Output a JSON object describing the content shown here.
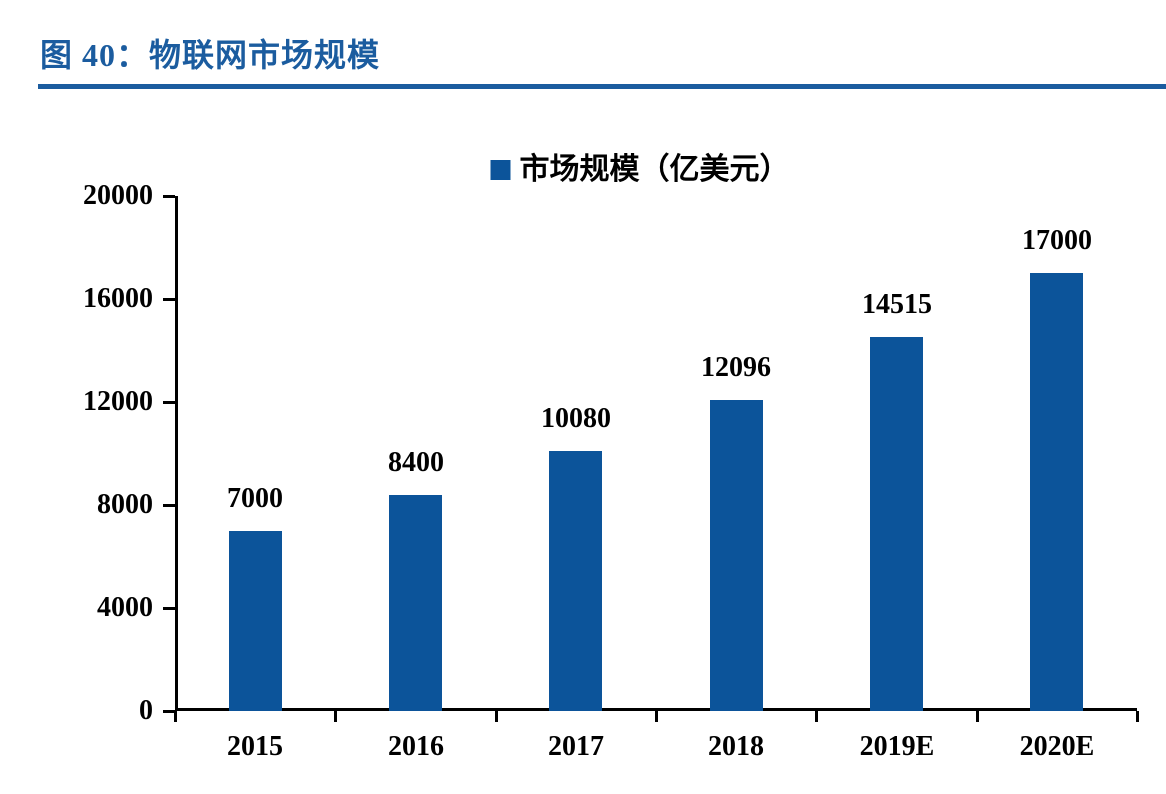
{
  "header": {
    "figure_title": "图 40：物联网市场规模"
  },
  "legend": {
    "label": "市场规模（亿美元）"
  },
  "colors": {
    "accent_blue": "#1B5C9F",
    "bar_blue": "#0C549A",
    "axis_black": "#000000",
    "label_black": "#000000",
    "background": "#FFFFFF"
  },
  "chart_data": {
    "type": "bar",
    "title": "图 40：物联网市场规模",
    "legend": [
      "市场规模（亿美元）"
    ],
    "legend_position": "top-center",
    "categories": [
      "2015",
      "2016",
      "2017",
      "2018",
      "2019E",
      "2020E"
    ],
    "values": [
      7000,
      8400,
      10080,
      12096,
      14515,
      17000
    ],
    "xlabel": "",
    "ylabel": "",
    "ylim": [
      0,
      20000
    ],
    "yticks": [
      0,
      4000,
      8000,
      12000,
      16000,
      20000
    ],
    "grid": false,
    "bar_color": "#0C549A",
    "value_labels_shown": true
  }
}
